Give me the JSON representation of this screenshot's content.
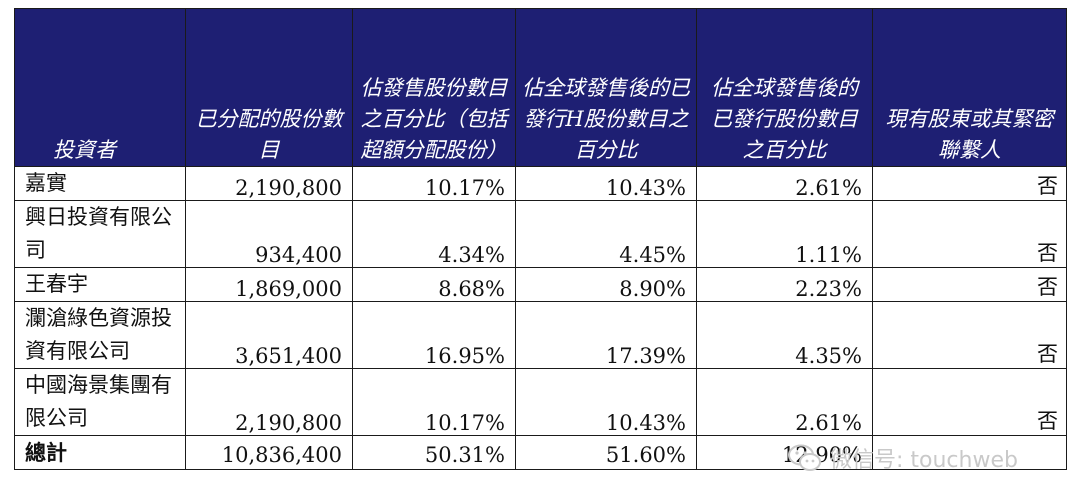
{
  "table": {
    "headers": [
      "投資者",
      "已分配的股份數目",
      "佔發售股份數目之百分比（包括超額分配股份）",
      "佔全球發售後的已發行H股份數目之百分比",
      "佔全球發售後的已發行股份數目之百分比",
      "現有股東或其緊密聯繫人"
    ],
    "rows": [
      {
        "investor": "嘉實",
        "shares": "2,190,800",
        "pct_offer": "10.17%",
        "pct_h": "10.43%",
        "pct_total": "2.61%",
        "connected": "否"
      },
      {
        "investor": "興日投資有限公司",
        "shares": "934,400",
        "pct_offer": "4.34%",
        "pct_h": "4.45%",
        "pct_total": "1.11%",
        "connected": "否"
      },
      {
        "investor": "王春宇",
        "shares": "1,869,000",
        "pct_offer": "8.68%",
        "pct_h": "8.90%",
        "pct_total": "2.23%",
        "connected": "否"
      },
      {
        "investor": "瀾滄綠色資源投資有限公司",
        "shares": "3,651,400",
        "pct_offer": "16.95%",
        "pct_h": "17.39%",
        "pct_total": "4.35%",
        "connected": "否"
      },
      {
        "investor": "中國海景集團有限公司",
        "shares": "2,190,800",
        "pct_offer": "10.17%",
        "pct_h": "10.43%",
        "pct_total": "2.61%",
        "connected": "否"
      }
    ],
    "total": {
      "label": "總計",
      "shares": "10,836,400",
      "pct_offer": "50.31%",
      "pct_h": "51.60%",
      "pct_total": "12.90%",
      "connected": ""
    }
  },
  "watermark": {
    "text": "微信号: touchweb",
    "icon": "wechat-icon"
  },
  "colors": {
    "header_bg": "#1e1f73",
    "header_text": "#ffffff",
    "border": "#1a1a1a"
  }
}
